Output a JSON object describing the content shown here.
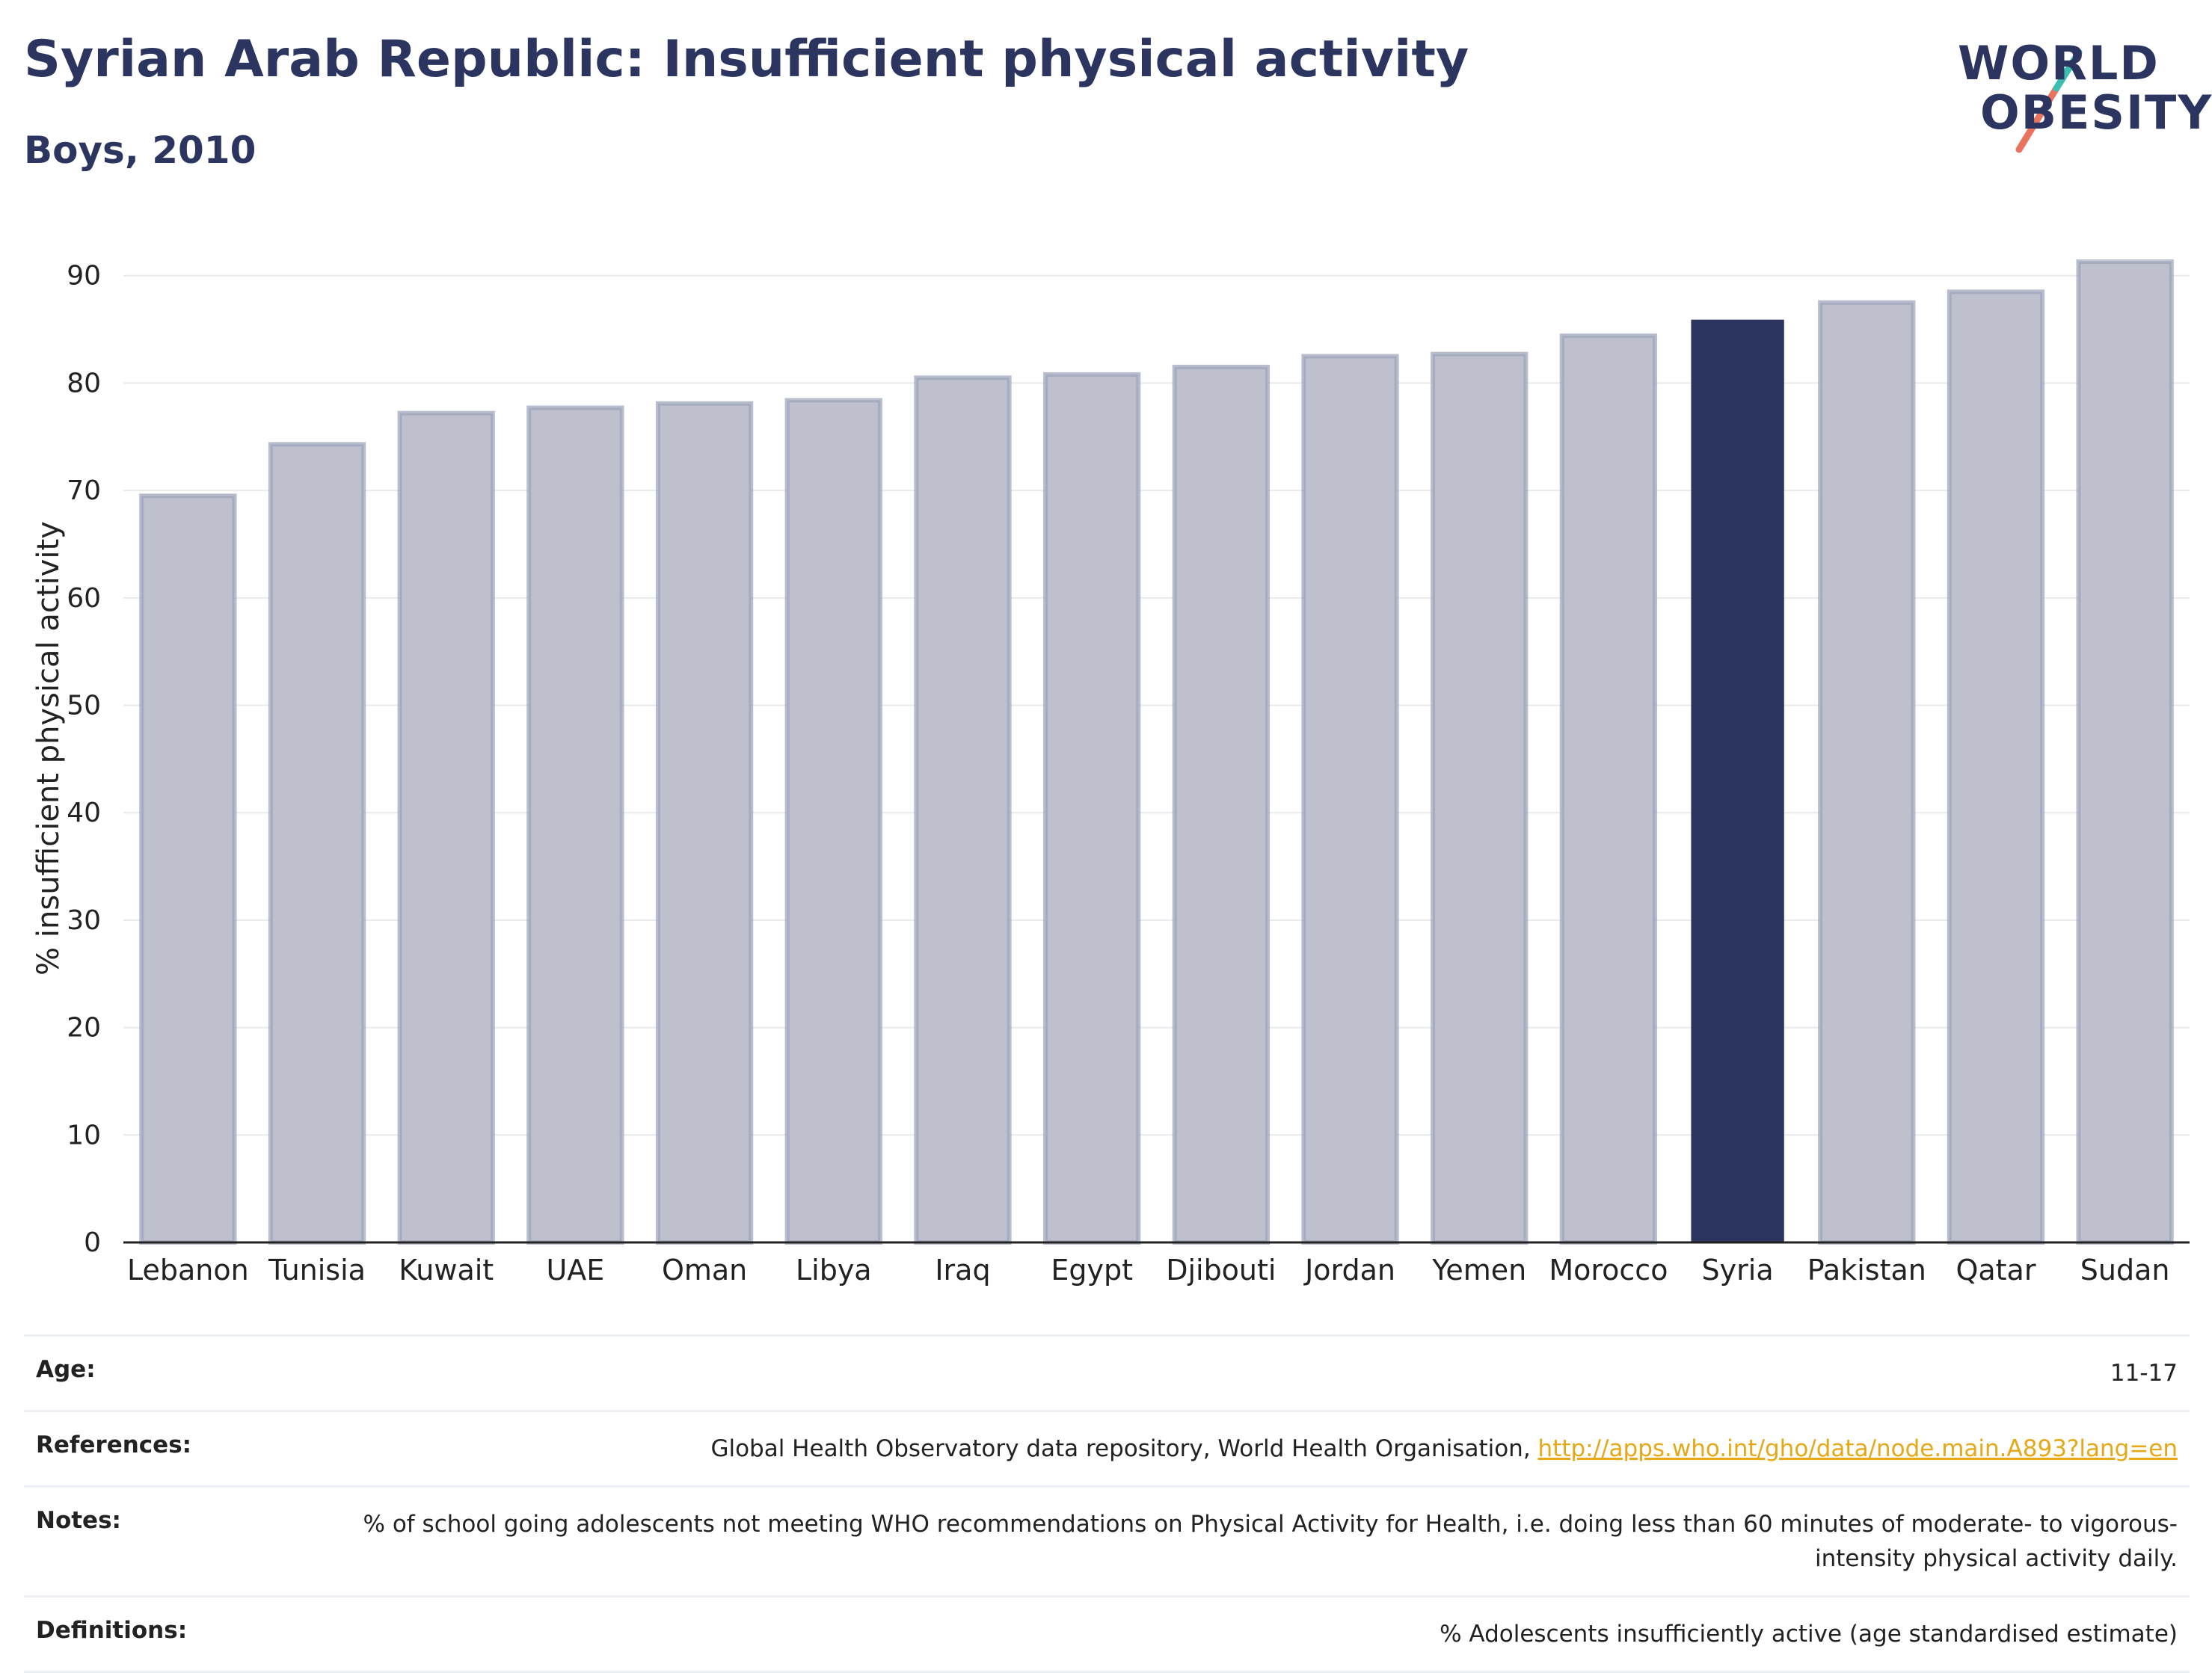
{
  "header": {
    "title": "Syrian Arab Republic: Insufficient physical activity",
    "subtitle": "Boys, 2010"
  },
  "logo": {
    "line1": "WORLD",
    "line2": "OBESITY"
  },
  "chart_data": {
    "type": "bar",
    "categories": [
      "Lebanon",
      "Tunisia",
      "Kuwait",
      "UAE",
      "Oman",
      "Libya",
      "Iraq",
      "Egypt",
      "Djibouti",
      "Jordan",
      "Yemen",
      "Morocco",
      "Syria",
      "Pakistan",
      "Qatar",
      "Sudan"
    ],
    "values": [
      69.5,
      74.3,
      77.2,
      77.7,
      78.1,
      78.4,
      80.5,
      80.8,
      81.5,
      82.5,
      82.7,
      84.4,
      85.9,
      87.5,
      88.5,
      91.3
    ],
    "highlight": "Syria",
    "ylabel": "% insufficient physical activity",
    "xlabel": "",
    "ylim": [
      0,
      92
    ],
    "yticks": [
      0,
      10,
      20,
      30,
      40,
      50,
      60,
      70,
      80,
      90
    ],
    "grid": true,
    "colors": {
      "bar": "#bec1cd",
      "bar_edge": "#9ba2bb",
      "highlight": "#2b3560",
      "grid": "#e8eaee",
      "axis": "#222222"
    }
  },
  "info": {
    "age_label": "Age:",
    "age_value": "11-17",
    "references_label": "References:",
    "references_text": "Global Health Observatory data repository, World Health Organisation, ",
    "references_link": "http://apps.who.int/gho/data/node.main.A893?lang=en",
    "notes_label": "Notes:",
    "notes_value": "% of school going adolescents not meeting WHO recommendations on Physical Activity for Health, i.e. doing less than 60 minutes of moderate- to vigorous-intensity physical activity daily.",
    "definitions_label": "Definitions:",
    "definitions_value": "% Adolescents insufficiently active (age standardised estimate)"
  }
}
